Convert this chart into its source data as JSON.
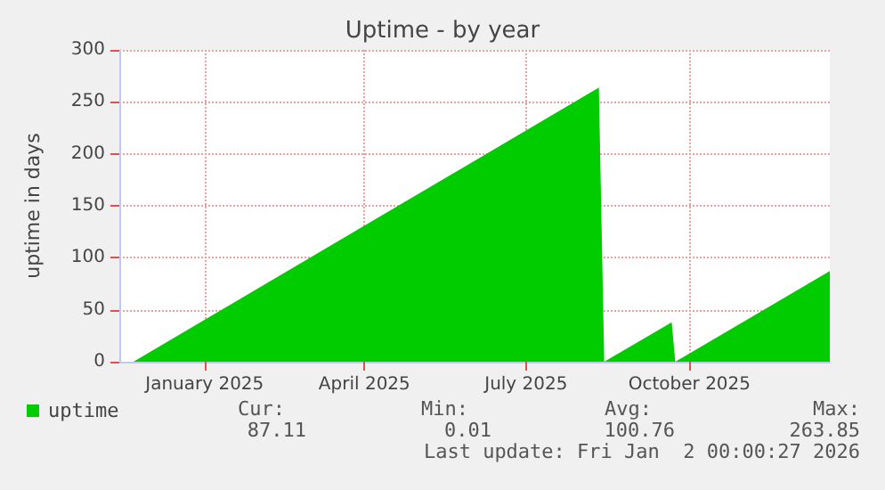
{
  "chart_data": {
    "type": "area",
    "title": "Uptime - by year",
    "ylabel": "uptime in days",
    "xlim": [
      "2024-11-28",
      "2026-01-02"
    ],
    "xticks": [
      {
        "value": "2025-01-15",
        "label": "January 2025"
      },
      {
        "value": "2025-04-15",
        "label": "April 2025"
      },
      {
        "value": "2025-07-15",
        "label": "July 2025"
      },
      {
        "value": "2025-10-15",
        "label": "October 2025"
      }
    ],
    "ylim": [
      0,
      300
    ],
    "yticks": [
      0,
      50,
      100,
      150,
      200,
      250,
      300
    ],
    "grid": true,
    "legend": "bottom left",
    "series": [
      {
        "name": "uptime",
        "color": "#00cc00",
        "x": [
          "2024-12-06",
          "2025-08-25",
          "2025-08-28",
          "2025-10-05",
          "2025-10-07",
          "2026-01-02"
        ],
        "values": [
          0,
          263.85,
          0,
          38,
          0,
          87.11
        ]
      }
    ],
    "annotations": [
      "Cur:",
      "Min:",
      "Avg:",
      "Max:",
      "87.11",
      "0.01",
      "100.76",
      "263.85",
      "Last update: Fri Jan  2 00:00:27 2026"
    ]
  }
}
